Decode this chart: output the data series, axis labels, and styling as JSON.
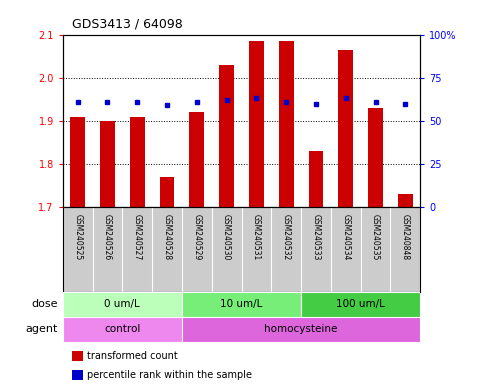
{
  "title": "GDS3413 / 64098",
  "samples": [
    "GSM240525",
    "GSM240526",
    "GSM240527",
    "GSM240528",
    "GSM240529",
    "GSM240530",
    "GSM240531",
    "GSM240532",
    "GSM240533",
    "GSM240534",
    "GSM240535",
    "GSM240848"
  ],
  "transformed_count": [
    1.91,
    1.9,
    1.91,
    1.77,
    1.92,
    2.03,
    2.085,
    2.085,
    1.83,
    2.065,
    1.93,
    1.73
  ],
  "percentile_rank": [
    61,
    61,
    61,
    59,
    61,
    62,
    63,
    61,
    60,
    63,
    61,
    60
  ],
  "ylim_left": [
    1.7,
    2.1
  ],
  "ylim_right": [
    0,
    100
  ],
  "yticks_left": [
    1.7,
    1.8,
    1.9,
    2.0,
    2.1
  ],
  "yticks_right": [
    0,
    25,
    50,
    75,
    100
  ],
  "ytick_labels_right": [
    "0",
    "25",
    "50",
    "75",
    "100%"
  ],
  "bar_color": "#cc0000",
  "dot_color": "#0000cc",
  "bar_width": 0.5,
  "dose_groups": [
    {
      "label": "0 um/L",
      "start": 0,
      "end": 4,
      "color": "#bbffbb"
    },
    {
      "label": "10 um/L",
      "start": 4,
      "end": 8,
      "color": "#77ee77"
    },
    {
      "label": "100 um/L",
      "start": 8,
      "end": 12,
      "color": "#44cc44"
    }
  ],
  "agent_groups": [
    {
      "label": "control",
      "start": 0,
      "end": 4,
      "color": "#ee88ee"
    },
    {
      "label": "homocysteine",
      "start": 4,
      "end": 12,
      "color": "#dd66dd"
    }
  ],
  "legend_bar_label": "transformed count",
  "legend_dot_label": "percentile rank within the sample",
  "background_color": "#ffffff",
  "plot_bg_color": "#ffffff",
  "label_area_bg": "#cccccc",
  "label_divider_color": "#aaaaaa"
}
